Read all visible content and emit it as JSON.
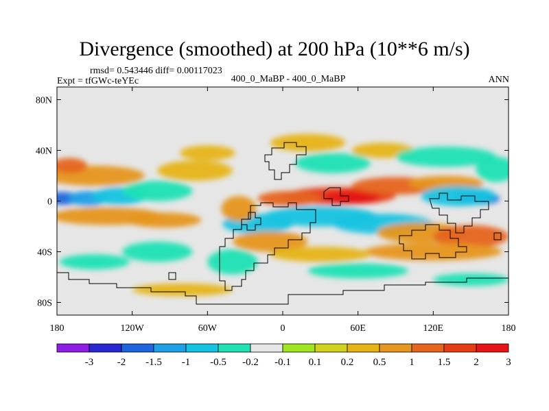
{
  "chart_data": {
    "type": "heatmap",
    "title": "Divergence (smoothed) at 200 hPa (10**6 m/s)",
    "rmsd_label": "rmsd= 0.543446",
    "diff_label": "diff= 0.00117023",
    "experiment_label": "Expt = tfGWc-teYEc",
    "comparison_label": "400_0_MaBP - 400_0_MaBP",
    "season_label": "ANN",
    "xlabel": "",
    "ylabel": "",
    "x_range": [
      -180,
      180
    ],
    "y_range": [
      -90,
      90
    ],
    "x_ticks": [
      {
        "value": -180,
        "label": "180"
      },
      {
        "value": -120,
        "label": "120W"
      },
      {
        "value": -60,
        "label": "60W"
      },
      {
        "value": 0,
        "label": "0"
      },
      {
        "value": 60,
        "label": "60E"
      },
      {
        "value": 120,
        "label": "120E"
      },
      {
        "value": 180,
        "label": "180"
      }
    ],
    "y_ticks": [
      {
        "value": 80,
        "label": "80N"
      },
      {
        "value": 40,
        "label": "40N"
      },
      {
        "value": 0,
        "label": "0"
      },
      {
        "value": -40,
        "label": "40S"
      },
      {
        "value": -80,
        "label": "80S"
      }
    ],
    "colorbar": {
      "labels": [
        "-3",
        "-2",
        "-1.5",
        "-1",
        "-0.5",
        "-0.2",
        "-0.1",
        "0.1",
        "0.2",
        "0.5",
        "1",
        "1.5",
        "2",
        "3"
      ],
      "colors": [
        "#8c1ee6",
        "#2828d2",
        "#1e64dc",
        "#1ea0e6",
        "#14c3e1",
        "#1ee1b4",
        "#e6e6e6",
        "#a0e61e",
        "#d2d21e",
        "#e6b414",
        "#e6961e",
        "#e6641e",
        "#e63c14",
        "#e61414"
      ]
    },
    "field_features": [
      {
        "lon": -175,
        "lat": 2,
        "value": -2.0,
        "width": 14,
        "height": 5
      },
      {
        "lon": -155,
        "lat": 2,
        "value": -1.5,
        "width": 16,
        "height": 6
      },
      {
        "lon": -130,
        "lat": 4,
        "value": -1.0,
        "width": 22,
        "height": 7
      },
      {
        "lon": -100,
        "lat": 8,
        "value": -0.5,
        "width": 28,
        "height": 8
      },
      {
        "lon": -140,
        "lat": -12,
        "value": 0.5,
        "width": 45,
        "height": 7
      },
      {
        "lon": -95,
        "lat": -15,
        "value": 0.5,
        "width": 30,
        "height": 6
      },
      {
        "lon": -150,
        "lat": 20,
        "value": 0.5,
        "width": 40,
        "height": 8
      },
      {
        "lon": -170,
        "lat": 28,
        "value": 1.0,
        "width": 14,
        "height": 6
      },
      {
        "lon": -70,
        "lat": 24,
        "value": 0.2,
        "width": 30,
        "height": 8
      },
      {
        "lon": -60,
        "lat": 38,
        "value": 0.3,
        "width": 22,
        "height": 6
      },
      {
        "lon": 20,
        "lat": 46,
        "value": 0.3,
        "width": 30,
        "height": 7
      },
      {
        "lon": 40,
        "lat": 30,
        "value": -0.4,
        "width": 30,
        "height": 8
      },
      {
        "lon": 80,
        "lat": 40,
        "value": 0.4,
        "width": 25,
        "height": 6
      },
      {
        "lon": 130,
        "lat": 35,
        "value": -0.3,
        "width": 40,
        "height": 8
      },
      {
        "lon": 170,
        "lat": 25,
        "value": -0.5,
        "width": 16,
        "height": 10
      },
      {
        "lon": 45,
        "lat": 4,
        "value": 1.5,
        "width": 45,
        "height": 7
      },
      {
        "lon": 55,
        "lat": 3,
        "value": 2.0,
        "width": 22,
        "height": 5
      },
      {
        "lon": 5,
        "lat": 2,
        "value": 1.0,
        "width": 25,
        "height": 6
      },
      {
        "lon": 90,
        "lat": 12,
        "value": 1.0,
        "width": 35,
        "height": 7
      },
      {
        "lon": 130,
        "lat": 14,
        "value": 0.5,
        "width": 30,
        "height": 6
      },
      {
        "lon": 155,
        "lat": 2,
        "value": -2.0,
        "width": 18,
        "height": 5
      },
      {
        "lon": 140,
        "lat": 4,
        "value": -1.0,
        "width": 30,
        "height": 8
      },
      {
        "lon": 30,
        "lat": -12,
        "value": -0.8,
        "width": 45,
        "height": 8
      },
      {
        "lon": 80,
        "lat": -18,
        "value": -0.6,
        "width": 40,
        "height": 8
      },
      {
        "lon": -20,
        "lat": -18,
        "value": -0.6,
        "width": 28,
        "height": 8
      },
      {
        "lon": -35,
        "lat": -6,
        "value": 0.6,
        "width": 14,
        "height": 10
      },
      {
        "lon": -10,
        "lat": -32,
        "value": 0.5,
        "width": 30,
        "height": 8
      },
      {
        "lon": 110,
        "lat": -25,
        "value": 0.6,
        "width": 35,
        "height": 8
      },
      {
        "lon": 150,
        "lat": -28,
        "value": 1.0,
        "width": 30,
        "height": 9
      },
      {
        "lon": 120,
        "lat": -40,
        "value": 0.6,
        "width": 55,
        "height": 7
      },
      {
        "lon": 30,
        "lat": -42,
        "value": 0.4,
        "width": 40,
        "height": 6
      },
      {
        "lon": -40,
        "lat": -48,
        "value": -0.4,
        "width": 20,
        "height": 10
      },
      {
        "lon": -150,
        "lat": -48,
        "value": -0.3,
        "width": 28,
        "height": 6
      },
      {
        "lon": -100,
        "lat": -40,
        "value": -0.5,
        "width": 28,
        "height": 8
      },
      {
        "lon": 60,
        "lat": -55,
        "value": -0.3,
        "width": 40,
        "height": 6
      },
      {
        "lon": 150,
        "lat": -62,
        "value": -0.3,
        "width": 30,
        "height": 5
      },
      {
        "lon": -80,
        "lat": -70,
        "value": 0.2,
        "width": 40,
        "height": 5
      },
      {
        "lon": 120,
        "lat": -78,
        "value": -0.2,
        "width": 40,
        "height": 5
      }
    ]
  }
}
